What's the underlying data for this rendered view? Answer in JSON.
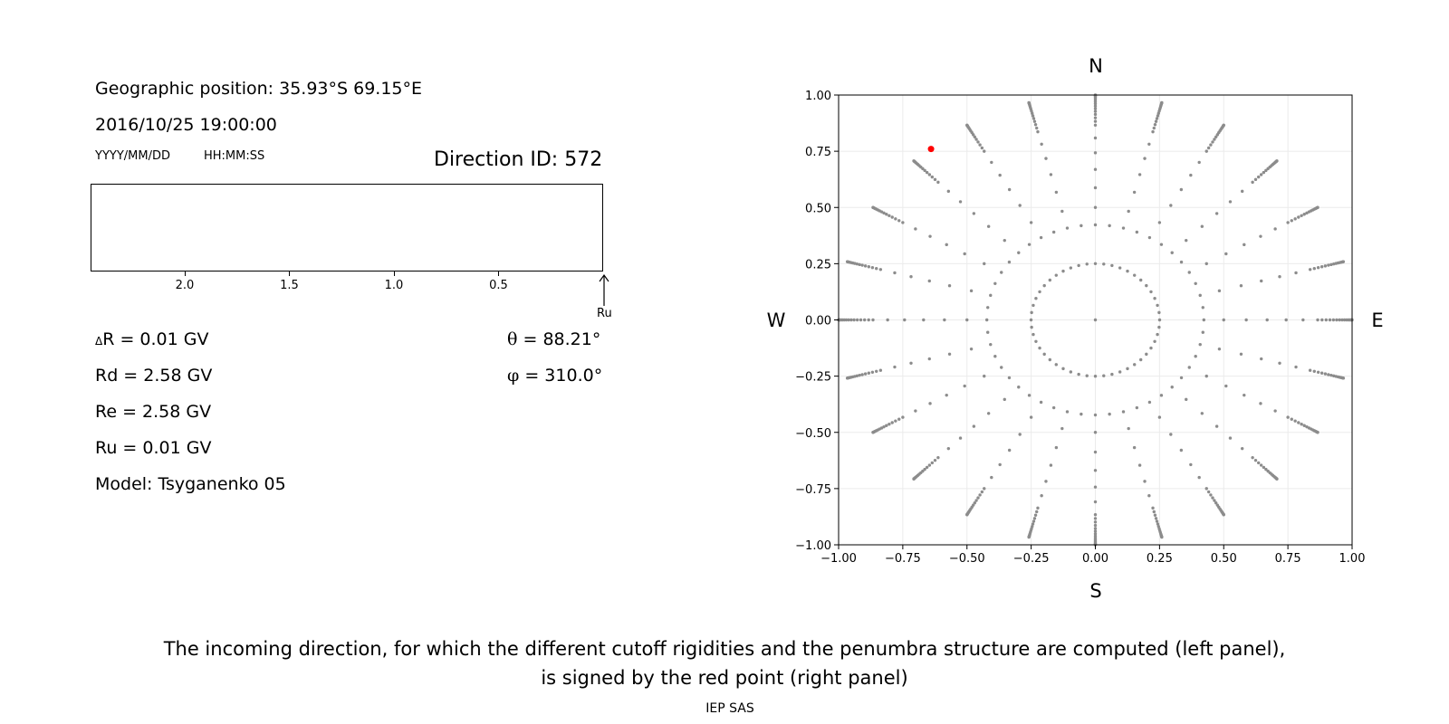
{
  "info": {
    "geo_position": "Geographic position: 35.93°S 69.15°E",
    "datetime": "2016/10/25 19:00:00",
    "date_format": "YYYY/MM/DD",
    "time_format": "HH:MM:SS",
    "direction_id": "Direction ID: 572"
  },
  "penumbra_axis": {
    "ticks": [
      "2.0",
      "1.5",
      "1.0",
      "0.5"
    ],
    "arrow_label": "Ru"
  },
  "values": {
    "delta_r_symbol": "Δ",
    "delta_r_rest": "R = 0.01 GV",
    "rd": "Rd = 2.58 GV",
    "re": "Re = 2.58 GV",
    "ru": "Ru = 0.01 GV",
    "model": "Model: Tsyganenko 05",
    "theta_symbol": "θ",
    "theta_rest": " = 88.21°",
    "phi_symbol": "φ",
    "phi_rest": " = 310.0°"
  },
  "compass": {
    "north": "N",
    "south": "S",
    "west": "W",
    "east": "E"
  },
  "caption": {
    "line1": "The incoming direction, for which the different cutoff rigidities and the penumbra structure are computed (left panel),",
    "line2": "is signed by the red point (right panel)"
  },
  "footer": "IEP SAS",
  "colors": {
    "grid_point": "#8c8c8c",
    "selected_point": "#ff0000",
    "grid_line": "#ebebeb"
  },
  "chart_data": {
    "type": "scatter",
    "title": "",
    "xlabel": "",
    "ylabel": "",
    "xlim": [
      -1.0,
      1.0
    ],
    "ylim": [
      -1.0,
      1.0
    ],
    "x_ticks": [
      "−1.00",
      "−0.75",
      "−0.50",
      "−0.25",
      "0.00",
      "0.25",
      "0.50",
      "0.75",
      "1.00"
    ],
    "y_ticks": [
      "1.00",
      "0.75",
      "0.50",
      "0.25",
      "0.00",
      "−0.25",
      "−0.50",
      "−0.75",
      "−1.00"
    ],
    "grid": true,
    "series": [
      {
        "description_pattern": "direction grid: 24 azimuth spokes every 15°, points at radius sin(zenith) for zenith 0–90°, clipped to the square",
        "azimuth_step_deg": 15,
        "zenith_step_deg": 2,
        "zenith_max_deg": 90,
        "inner_ring_zenith_deg": [
          14.5,
          25
        ],
        "inner_ring_count": 48,
        "color": "#8c8c8c"
      },
      {
        "point": {
          "x": -0.64,
          "y": 0.76
        },
        "color": "#ff0000"
      }
    ]
  }
}
